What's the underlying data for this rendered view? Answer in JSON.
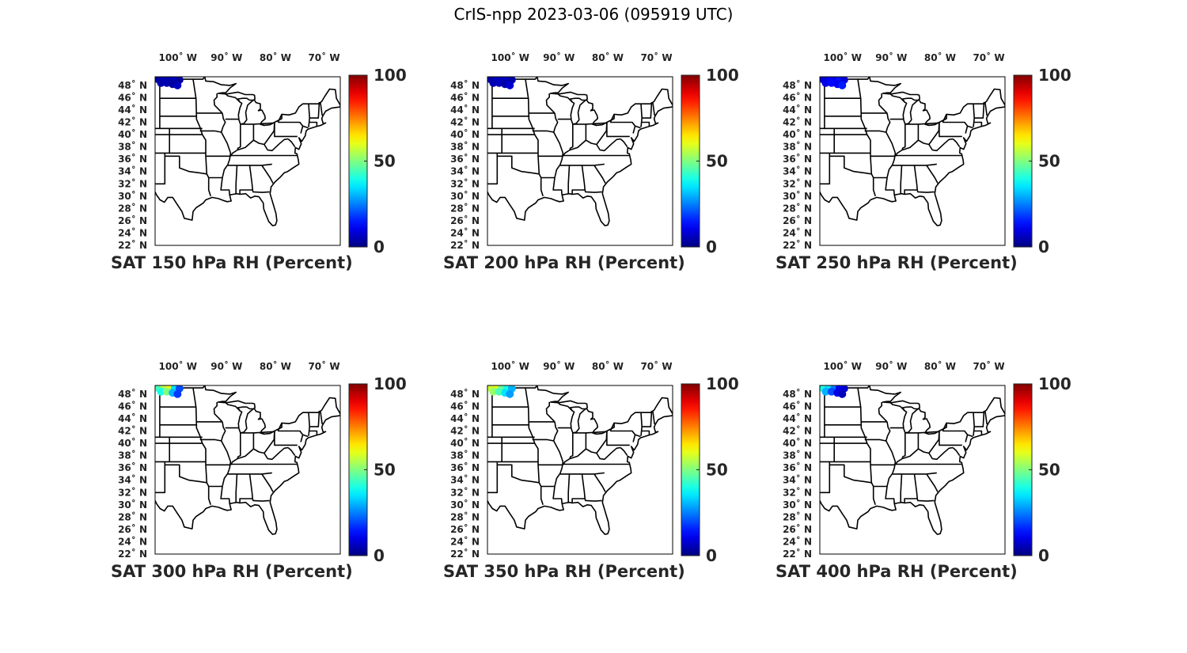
{
  "figure_title": "CrIS-npp 2023-03-06 (095919 UTC)",
  "colormap": "jet",
  "chart_data": [
    {
      "type": "heatmap",
      "title": "SAT 150 hPa RH (Percent)",
      "lon_ticks": [
        -100,
        -90,
        -80,
        -70
      ],
      "lon_tick_labels": [
        "100˚ W",
        "90˚ W",
        "80˚ W",
        "70˚ W"
      ],
      "lat_ticks": [
        48,
        46,
        44,
        42,
        40,
        38,
        36,
        34,
        32,
        30,
        28,
        26,
        24,
        22
      ],
      "lat_tick_labels": [
        "48˚ N",
        "46˚ N",
        "44˚ N",
        "42˚ N",
        "40˚ N",
        "38˚ N",
        "36˚ N",
        "34˚ N",
        "32˚ N",
        "30˚ N",
        "28˚ N",
        "26˚ N",
        "24˚ N",
        "22˚ N"
      ],
      "colorbar": {
        "min": 0,
        "max": 100,
        "ticks": [
          "0",
          "50",
          "100"
        ]
      },
      "points": [
        {
          "lon": -104.4,
          "lat": 49.0,
          "value": 3
        },
        {
          "lon": -103.2,
          "lat": 49.0,
          "value": 5
        },
        {
          "lon": -102.0,
          "lat": 49.0,
          "value": 4
        },
        {
          "lon": -101.0,
          "lat": 48.9,
          "value": 6
        },
        {
          "lon": -100.0,
          "lat": 48.9,
          "value": 3
        },
        {
          "lon": -103.8,
          "lat": 48.4,
          "value": 4
        },
        {
          "lon": -102.6,
          "lat": 48.4,
          "value": 5
        },
        {
          "lon": -101.4,
          "lat": 48.2,
          "value": 3
        },
        {
          "lon": -100.4,
          "lat": 48.0,
          "value": 6
        }
      ]
    },
    {
      "type": "heatmap",
      "title": "SAT 200 hPa RH (Percent)",
      "lon_ticks": [
        -100,
        -90,
        -80,
        -70
      ],
      "lon_tick_labels": [
        "100˚ W",
        "90˚ W",
        "80˚ W",
        "70˚ W"
      ],
      "lat_ticks": [
        48,
        46,
        44,
        42,
        40,
        38,
        36,
        34,
        32,
        30,
        28,
        26,
        24,
        22
      ],
      "lat_tick_labels": [
        "48˚ N",
        "46˚ N",
        "44˚ N",
        "42˚ N",
        "40˚ N",
        "38˚ N",
        "36˚ N",
        "34˚ N",
        "32˚ N",
        "30˚ N",
        "28˚ N",
        "26˚ N",
        "24˚ N",
        "22˚ N"
      ],
      "colorbar": {
        "min": 0,
        "max": 100,
        "ticks": [
          "0",
          "50",
          "100"
        ]
      },
      "points": [
        {
          "lon": -104.4,
          "lat": 49.0,
          "value": 4
        },
        {
          "lon": -103.2,
          "lat": 49.0,
          "value": 6
        },
        {
          "lon": -102.0,
          "lat": 49.0,
          "value": 5
        },
        {
          "lon": -101.0,
          "lat": 48.9,
          "value": 7
        },
        {
          "lon": -100.0,
          "lat": 48.9,
          "value": 4
        },
        {
          "lon": -103.8,
          "lat": 48.4,
          "value": 5
        },
        {
          "lon": -102.6,
          "lat": 48.4,
          "value": 6
        },
        {
          "lon": -101.4,
          "lat": 48.2,
          "value": 4
        },
        {
          "lon": -100.4,
          "lat": 48.0,
          "value": 8
        }
      ]
    },
    {
      "type": "heatmap",
      "title": "SAT 250 hPa RH (Percent)",
      "lon_ticks": [
        -100,
        -90,
        -80,
        -70
      ],
      "lon_tick_labels": [
        "100˚ W",
        "90˚ W",
        "80˚ W",
        "70˚ W"
      ],
      "lat_ticks": [
        48,
        46,
        44,
        42,
        40,
        38,
        36,
        34,
        32,
        30,
        28,
        26,
        24,
        22
      ],
      "lat_tick_labels": [
        "48˚ N",
        "46˚ N",
        "44˚ N",
        "42˚ N",
        "40˚ N",
        "38˚ N",
        "36˚ N",
        "34˚ N",
        "32˚ N",
        "30˚ N",
        "28˚ N",
        "26˚ N",
        "24˚ N",
        "22˚ N"
      ],
      "colorbar": {
        "min": 0,
        "max": 100,
        "ticks": [
          "0",
          "50",
          "100"
        ]
      },
      "points": [
        {
          "lon": -104.4,
          "lat": 49.0,
          "value": 8
        },
        {
          "lon": -103.2,
          "lat": 49.0,
          "value": 12
        },
        {
          "lon": -102.0,
          "lat": 49.0,
          "value": 10
        },
        {
          "lon": -101.0,
          "lat": 48.9,
          "value": 14
        },
        {
          "lon": -100.0,
          "lat": 48.9,
          "value": 9
        },
        {
          "lon": -103.8,
          "lat": 48.4,
          "value": 10
        },
        {
          "lon": -102.6,
          "lat": 48.4,
          "value": 13
        },
        {
          "lon": -101.4,
          "lat": 48.2,
          "value": 11
        },
        {
          "lon": -100.4,
          "lat": 48.0,
          "value": 15
        }
      ]
    },
    {
      "type": "heatmap",
      "title": "SAT 300 hPa RH (Percent)",
      "lon_ticks": [
        -100,
        -90,
        -80,
        -70
      ],
      "lon_tick_labels": [
        "100˚ W",
        "90˚ W",
        "80˚ W",
        "70˚ W"
      ],
      "lat_ticks": [
        48,
        46,
        44,
        42,
        40,
        38,
        36,
        34,
        32,
        30,
        28,
        26,
        24,
        22
      ],
      "lat_tick_labels": [
        "48˚ N",
        "46˚ N",
        "44˚ N",
        "42˚ N",
        "40˚ N",
        "38˚ N",
        "36˚ N",
        "34˚ N",
        "32˚ N",
        "30˚ N",
        "28˚ N",
        "26˚ N",
        "24˚ N",
        "22˚ N"
      ],
      "colorbar": {
        "min": 0,
        "max": 100,
        "ticks": [
          "0",
          "50",
          "100"
        ]
      },
      "points": [
        {
          "lon": -104.4,
          "lat": 49.0,
          "value": 45
        },
        {
          "lon": -103.2,
          "lat": 49.0,
          "value": 55
        },
        {
          "lon": -102.0,
          "lat": 49.0,
          "value": 62
        },
        {
          "lon": -101.0,
          "lat": 48.9,
          "value": 35
        },
        {
          "lon": -100.0,
          "lat": 48.9,
          "value": 20
        },
        {
          "lon": -103.8,
          "lat": 48.4,
          "value": 40
        },
        {
          "lon": -102.6,
          "lat": 48.4,
          "value": 50
        },
        {
          "lon": -101.4,
          "lat": 48.2,
          "value": 30
        },
        {
          "lon": -100.4,
          "lat": 48.0,
          "value": 18
        }
      ]
    },
    {
      "type": "heatmap",
      "title": "SAT 350 hPa RH (Percent)",
      "lon_ticks": [
        -100,
        -90,
        -80,
        -70
      ],
      "lon_tick_labels": [
        "100˚ W",
        "90˚ W",
        "80˚ W",
        "70˚ W"
      ],
      "lat_ticks": [
        48,
        46,
        44,
        42,
        40,
        38,
        36,
        34,
        32,
        30,
        28,
        26,
        24,
        22
      ],
      "lat_tick_labels": [
        "48˚ N",
        "46˚ N",
        "44˚ N",
        "42˚ N",
        "40˚ N",
        "38˚ N",
        "36˚ N",
        "34˚ N",
        "32˚ N",
        "30˚ N",
        "28˚ N",
        "26˚ N",
        "24˚ N",
        "22˚ N"
      ],
      "colorbar": {
        "min": 0,
        "max": 100,
        "ticks": [
          "0",
          "50",
          "100"
        ]
      },
      "points": [
        {
          "lon": -104.4,
          "lat": 49.0,
          "value": 58
        },
        {
          "lon": -103.2,
          "lat": 49.0,
          "value": 60
        },
        {
          "lon": -102.0,
          "lat": 49.0,
          "value": 48
        },
        {
          "lon": -101.0,
          "lat": 48.9,
          "value": 40
        },
        {
          "lon": -100.0,
          "lat": 48.9,
          "value": 30
        },
        {
          "lon": -103.8,
          "lat": 48.4,
          "value": 52
        },
        {
          "lon": -102.6,
          "lat": 48.4,
          "value": 45
        },
        {
          "lon": -101.4,
          "lat": 48.2,
          "value": 35
        },
        {
          "lon": -100.4,
          "lat": 48.0,
          "value": 28
        }
      ]
    },
    {
      "type": "heatmap",
      "title": "SAT 400 hPa RH (Percent)",
      "lon_ticks": [
        -100,
        -90,
        -80,
        -70
      ],
      "lon_tick_labels": [
        "100˚ W",
        "90˚ W",
        "80˚ W",
        "70˚ W"
      ],
      "lat_ticks": [
        48,
        46,
        44,
        42,
        40,
        38,
        36,
        34,
        32,
        30,
        28,
        26,
        24,
        22
      ],
      "lat_tick_labels": [
        "48˚ N",
        "46˚ N",
        "44˚ N",
        "42˚ N",
        "40˚ N",
        "38˚ N",
        "36˚ N",
        "34˚ N",
        "32˚ N",
        "30˚ N",
        "28˚ N",
        "26˚ N",
        "24˚ N",
        "22˚ N"
      ],
      "colorbar": {
        "min": 0,
        "max": 100,
        "ticks": [
          "0",
          "50",
          "100"
        ]
      },
      "points": [
        {
          "lon": -104.4,
          "lat": 49.0,
          "value": 40
        },
        {
          "lon": -103.2,
          "lat": 49.0,
          "value": 35
        },
        {
          "lon": -102.0,
          "lat": 49.0,
          "value": 25
        },
        {
          "lon": -101.0,
          "lat": 48.9,
          "value": 12
        },
        {
          "lon": -100.0,
          "lat": 48.9,
          "value": 8
        },
        {
          "lon": -103.8,
          "lat": 48.4,
          "value": 30
        },
        {
          "lon": -102.6,
          "lat": 48.4,
          "value": 20
        },
        {
          "lon": -101.4,
          "lat": 48.2,
          "value": 10
        },
        {
          "lon": -100.4,
          "lat": 48.0,
          "value": 6
        }
      ]
    }
  ]
}
